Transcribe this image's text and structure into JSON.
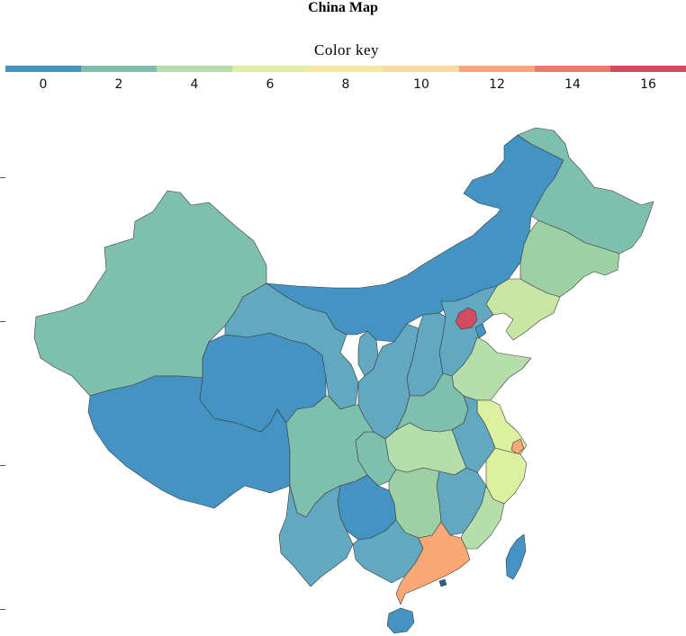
{
  "title": "China Map",
  "legend": {
    "title": "Color key",
    "ticks": [
      "0",
      "2",
      "4",
      "6",
      "8",
      "10",
      "12",
      "14",
      "16"
    ],
    "colors": [
      "#4393c3",
      "#7fbfae",
      "#b5deab",
      "#dcf0a0",
      "#f6e89a",
      "#fdd99a",
      "#f8a775",
      "#e97a6a",
      "#d24b5e"
    ]
  },
  "regions": {
    "xinjiang": "#7fbfae",
    "tibet": "#4393c3",
    "qinghai": "#4393c3",
    "gansu": "#62a8c0",
    "inner_mongolia": "#4393c3",
    "heilongjiang": "#7fbfae",
    "jilin": "#9ed0a6",
    "liaoning": "#c7e6a3",
    "beijing": "#d24b5e",
    "tianjin": "#4393c3",
    "hebei": "#62a8c0",
    "shanxi": "#62a8c0",
    "shaanxi": "#62a8c0",
    "ningxia": "#62a8c0",
    "shandong": "#b5deab",
    "henan": "#7fbfae",
    "jiangsu": "#dcf0a0",
    "shanghai": "#f8a775",
    "anhui": "#62a8c0",
    "hubei": "#b5deab",
    "sichuan": "#7fbfae",
    "chongqing": "#7fbfae",
    "zhejiang": "#dcf0a0",
    "jiangxi": "#62a8c0",
    "hunan": "#9ed0a6",
    "fujian": "#b5deab",
    "guizhou": "#4393c3",
    "yunnan": "#62a8c0",
    "guangxi": "#62a8c0",
    "guangdong": "#f8a775",
    "hainan": "#4393c3",
    "taiwan": "#4393c3",
    "hongkong": "#2b5f8f"
  }
}
